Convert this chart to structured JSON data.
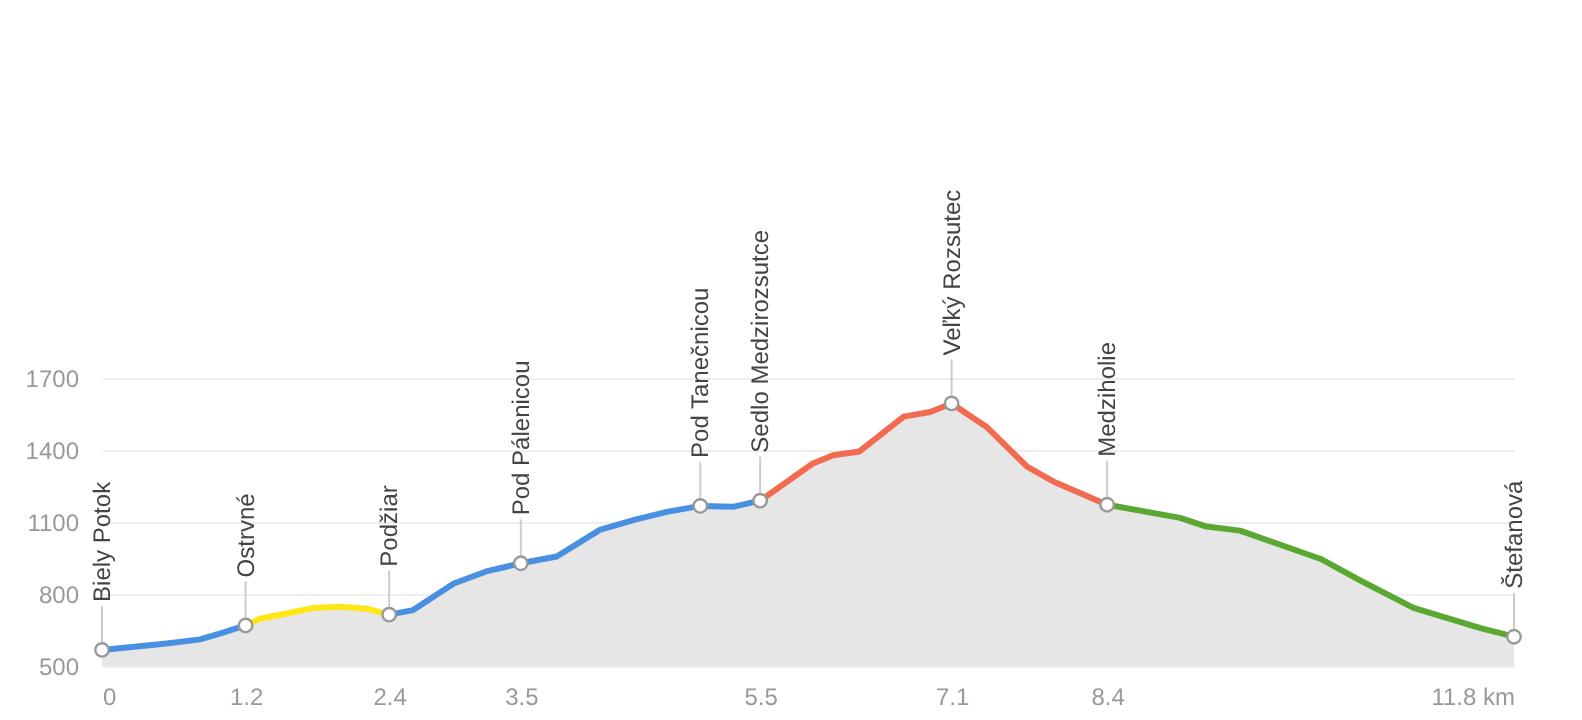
{
  "chart_data": {
    "type": "area",
    "xlim": [
      0,
      11.8
    ],
    "ylim": [
      500,
      1700
    ],
    "xticks": [
      0,
      1.2,
      2.4,
      3.5,
      5.5,
      7.1,
      8.4,
      {
        "value": 11.8,
        "label": "11.8 km"
      }
    ],
    "yticks": [
      500,
      800,
      1100,
      1400,
      1700
    ],
    "grid": "y",
    "series": [
      {
        "color": "#4a90e2",
        "x": [
          0,
          0.54,
          0.82,
          0.99,
          1.2
        ],
        "values": [
          567,
          594,
          611,
          636,
          669
        ]
      },
      {
        "color": "#ffe714",
        "x": [
          1.2,
          1.32,
          1.54,
          1.77,
          1.99,
          2.21,
          2.4
        ],
        "values": [
          669,
          697,
          719,
          742,
          747,
          739,
          714
        ]
      },
      {
        "color": "#4a90e2",
        "x": [
          2.4,
          2.6,
          2.94,
          3.21,
          3.5,
          3.8,
          4.16,
          4.44,
          4.72,
          5.0,
          5.28,
          5.5
        ],
        "values": [
          714,
          733,
          844,
          894,
          928,
          956,
          1067,
          1108,
          1142,
          1167,
          1164,
          1189
        ]
      },
      {
        "color": "#f26b50",
        "x": [
          5.5,
          5.94,
          6.11,
          6.33,
          6.7,
          6.92,
          7.1,
          7.39,
          7.73,
          7.95,
          8.4
        ],
        "values": [
          1189,
          1344,
          1378,
          1394,
          1539,
          1558,
          1594,
          1497,
          1331,
          1269,
          1172
        ]
      },
      {
        "color": "#5aa832",
        "x": [
          8.4,
          9.01,
          9.23,
          9.51,
          10.18,
          10.51,
          10.96,
          11.52,
          11.8
        ],
        "values": [
          1172,
          1117,
          1081,
          1064,
          947,
          858,
          742,
          658,
          622
        ]
      }
    ],
    "annotations": [
      {
        "text": "Biely Potok",
        "x": 0,
        "y": 567
      },
      {
        "text": "Ostrvné",
        "x": 1.2,
        "y": 669
      },
      {
        "text": "Podžiar",
        "x": 2.4,
        "y": 714
      },
      {
        "text": "Pod Pálenicou",
        "x": 3.5,
        "y": 928
      },
      {
        "text": "Pod Tanečnicou",
        "x": 5.0,
        "y": 1167
      },
      {
        "text": "Sedlo Medzirozsutce",
        "x": 5.5,
        "y": 1189
      },
      {
        "text": "Veľký Rozsutec",
        "x": 7.1,
        "y": 1594
      },
      {
        "text": "Medziholie",
        "x": 8.4,
        "y": 1172
      },
      {
        "text": "Štefanová",
        "x": 11.8,
        "y": 622
      }
    ]
  }
}
